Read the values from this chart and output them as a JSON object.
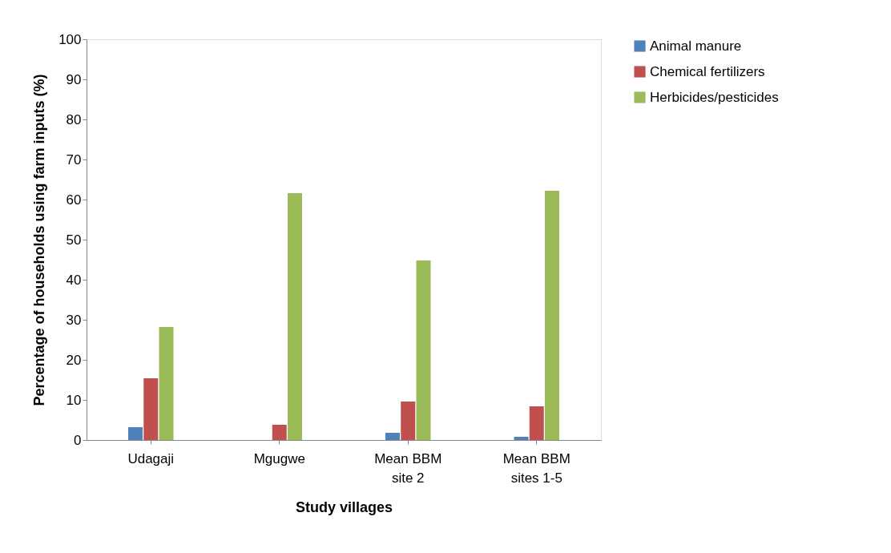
{
  "chart_data": {
    "type": "bar",
    "xlabel": "Study villages",
    "ylabel": "Percentage of households using farm inputs (%)",
    "categories": [
      "Udagaji",
      "Mgugwe",
      "Mean BBM site 2",
      "Mean BBM sites 1-5"
    ],
    "series": [
      {
        "name": "Animal manure",
        "color": "#4f81bd",
        "values": [
          3.2,
          0,
          1.8,
          0.8
        ]
      },
      {
        "name": "Chemical fertilizers",
        "color": "#c0504d",
        "values": [
          15.4,
          3.8,
          9.6,
          8.4
        ]
      },
      {
        "name": "Herbicides/pesticides",
        "color": "#9bbb59",
        "values": [
          28.2,
          61.6,
          44.8,
          62.2
        ]
      }
    ],
    "ylim": [
      0,
      100
    ],
    "yticks": [
      0,
      10,
      20,
      30,
      40,
      50,
      60,
      70,
      80,
      90,
      100
    ],
    "grid": false,
    "legend": "right"
  }
}
